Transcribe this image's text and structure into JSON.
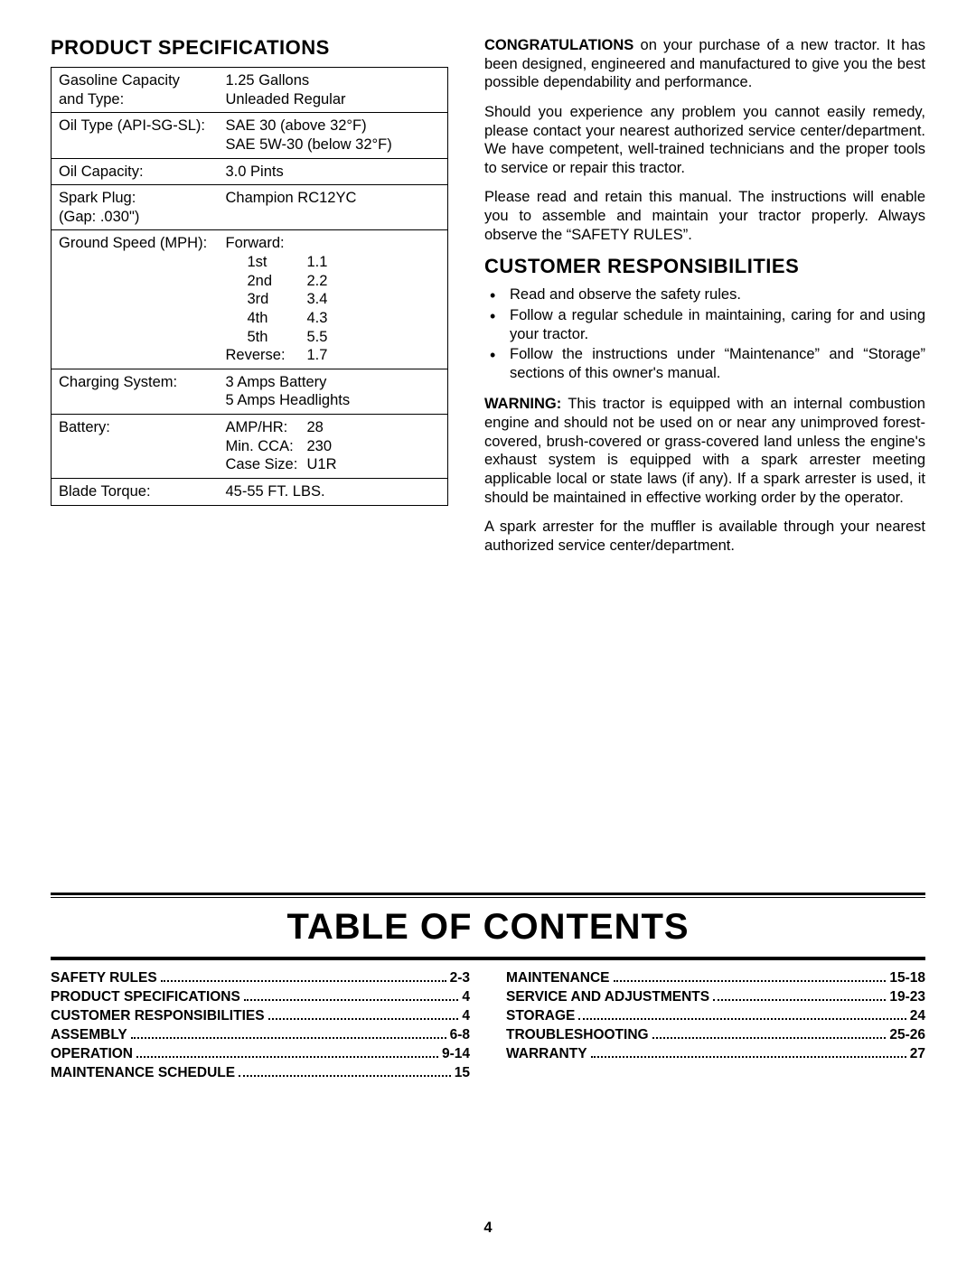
{
  "spec": {
    "heading": "PRODUCT SPECIFICATIONS",
    "rows": [
      {
        "label": "Gasoline Capacity\nand Type:",
        "value": "1.25 Gallons\nUnleaded Regular"
      },
      {
        "label": "Oil Type (API-SG-SL):",
        "value": "SAE 30 (above 32°F)\nSAE 5W-30 (below 32°F)"
      },
      {
        "label": "Oil Capacity:",
        "value": "3.0 Pints"
      },
      {
        "label": "Spark Plug:\n(Gap: .030\")",
        "value": "Champion RC12YC"
      }
    ],
    "ground_speed": {
      "label": "Ground Speed (MPH):",
      "lead": "Forward:",
      "gears": [
        {
          "g": "1st",
          "v": "1.1"
        },
        {
          "g": "2nd",
          "v": "2.2"
        },
        {
          "g": "3rd",
          "v": "3.4"
        },
        {
          "g": "4th",
          "v": "4.3"
        },
        {
          "g": "5th",
          "v": "5.5"
        }
      ],
      "reverse_label": "Reverse:",
      "reverse_value": "1.7"
    },
    "charging": {
      "label": "Charging System:",
      "value": "3 Amps Battery\n5 Amps Headlights"
    },
    "battery": {
      "label": "Battery:",
      "lines": [
        {
          "k": "AMP/HR:",
          "v": "28"
        },
        {
          "k": "Min. CCA:",
          "v": "230"
        },
        {
          "k": "Case Size:",
          "v": "U1R"
        }
      ]
    },
    "blade": {
      "label": "Blade Torque:",
      "value": "45-55 FT. LBS."
    }
  },
  "right": {
    "congrats_lead": "CONGRATULATIONS",
    "congrats_rest": " on your purchase of a new tractor. It has been designed, engineered and manufactured to give you the best possible dependability and performance.",
    "p2": "Should you experience any problem you cannot easily remedy, please contact your nearest authorized service center/department. We have competent, well-trained technicians and the proper tools to service or repair this tractor.",
    "p3": "Please read and retain this manual. The instructions will enable you to assemble and maintain your tractor properly. Always observe the “SAFETY RULES”.",
    "cust_heading": "CUSTOMER RESPONSIBILITIES",
    "bullets": [
      "Read and observe the safety rules.",
      "Follow a regular schedule in maintaining, caring for and using your tractor.",
      "Follow the instructions under “Maintenance” and “Storage” sections of this owner's manual."
    ],
    "warning_lead": "WARNING:",
    "warning_rest": " This tractor is equipped with an internal combustion engine and should not be used on or near any unimproved forest-covered, brush-covered or grass-covered land unless the engine's exhaust system is equipped with a spark arrester meeting applicable local or state laws (if any). If a spark arrester is used, it should be maintained in effective working order by the operator.",
    "p5": "A spark arrester for the muffler is available through your nearest authorized service center/department."
  },
  "toc": {
    "title": "TABLE OF CONTENTS",
    "left": [
      {
        "label": "SAFETY RULES",
        "page": "2-3"
      },
      {
        "label": "PRODUCT SPECIFICATIONS",
        "page": "4"
      },
      {
        "label": "CUSTOMER RESPONSIBILITIES",
        "page": "4"
      },
      {
        "label": "ASSEMBLY",
        "page": "6-8"
      },
      {
        "label": "OPERATION",
        "page": "9-14"
      },
      {
        "label": "MAINTENANCE SCHEDULE",
        "page": "15"
      }
    ],
    "right": [
      {
        "label": "MAINTENANCE",
        "page": "15-18"
      },
      {
        "label": "SERVICE AND ADJUSTMENTS",
        "page": "19-23"
      },
      {
        "label": "STORAGE",
        "page": "24"
      },
      {
        "label": "TROUBLESHOOTING",
        "page": "25-26"
      },
      {
        "label": "WARRANTY",
        "page": "27"
      }
    ]
  },
  "page_number": "4"
}
